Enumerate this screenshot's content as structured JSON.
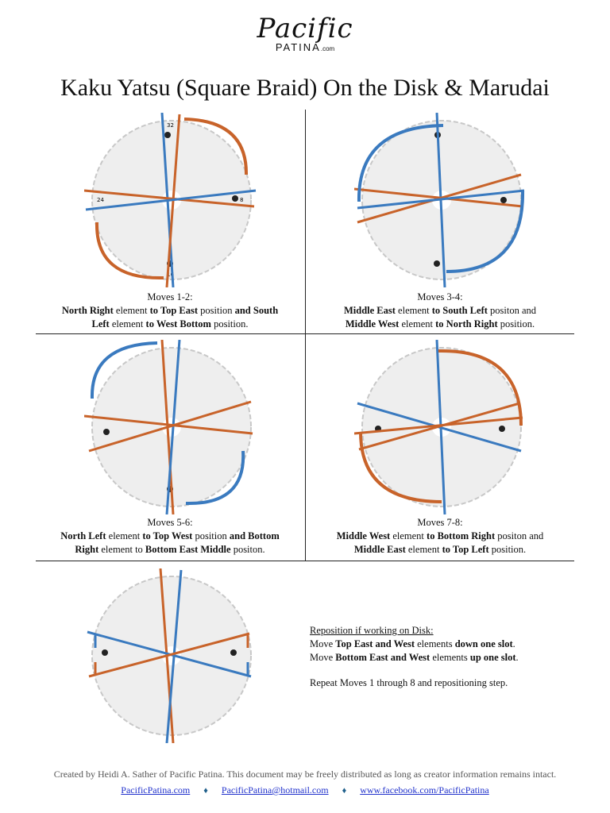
{
  "logo": {
    "script": "Pacific",
    "sub": "PATINA",
    "dotcom": ".com"
  },
  "title": "Kaku Yatsu (Square Braid) On the Disk & Marudai",
  "disk_labels": {
    "top": "32",
    "right": "8",
    "bottom": "16",
    "left": "24"
  },
  "colors": {
    "orange": "#c8632a",
    "blue": "#3a7abf",
    "disk": "#eeeeee"
  },
  "panels": [
    {
      "moves": "Moves 1-2:",
      "p1": {
        "a": "North Right",
        "b": " element ",
        "c": "to Top East",
        "d": " position ",
        "e": "and South"
      },
      "p2": {
        "a": "Left",
        "b": " element ",
        "c": "to West Bottom",
        "d": " position."
      }
    },
    {
      "moves": "Moves 3-4:",
      "p1": {
        "a": "Middle East",
        "b": " element ",
        "c": "to South Left",
        "d": " positon and"
      },
      "p2": {
        "a": "Middle West",
        "b": " element ",
        "c": "to North Right",
        "d": " position."
      }
    },
    {
      "moves": "Moves 5-6:",
      "p1": {
        "a": "North Left",
        "b": " element ",
        "c": "to Top West",
        "d": " position ",
        "e": "and Bottom"
      },
      "p2": {
        "a": "Right",
        "b": " element to ",
        "c": "Bottom East Middle",
        "d": " positon."
      }
    },
    {
      "moves": "Moves 7-8:",
      "p1": {
        "a": "Middle West",
        "b": " element ",
        "c": "to Bottom Right",
        "d": " positon and"
      },
      "p2": {
        "a": "Middle East",
        "b": " element ",
        "c": "to Top Left",
        "d": " position."
      }
    }
  ],
  "reposition": {
    "heading": "Reposition if working on Disk:",
    "l1": {
      "a": "Move ",
      "b": "Top East and West",
      "c": " elements ",
      "d": "down one slot",
      "e": "."
    },
    "l2": {
      "a": "Move ",
      "b": "Bottom East and West",
      "c": " elements ",
      "d": "up one slot",
      "e": "."
    },
    "repeat": "Repeat Moves 1 through 8 and repositioning step."
  },
  "footer": {
    "text": "Created by Heidi A. Sather of Pacific Patina. This document may be freely distributed as long as creator information remains intact.",
    "link1": "PacificPatina.com",
    "link2": "PacificPatina@hotmail.com",
    "link3": "www.facebook.com/PacificPatina",
    "sep": "♦"
  }
}
